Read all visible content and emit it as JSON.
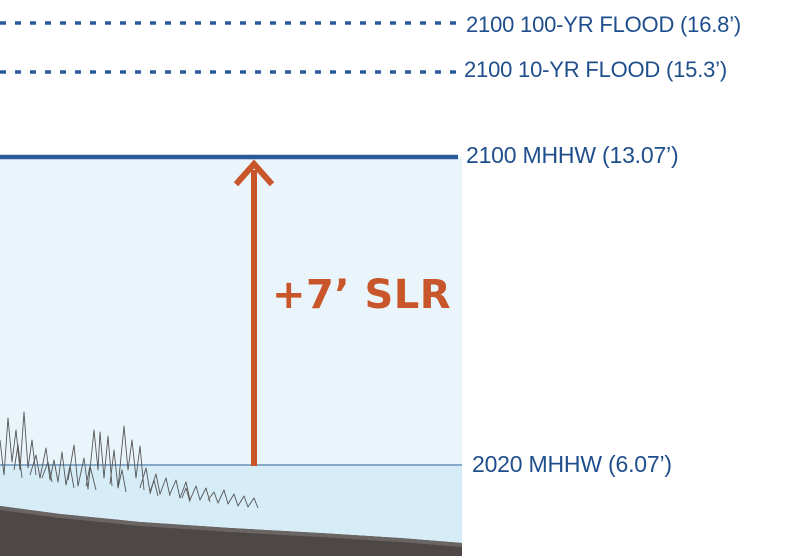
{
  "levels": {
    "flood_100yr": {
      "label": "2100 100-YR FLOOD (16.8’)",
      "value_ft": 16.8
    },
    "flood_10yr": {
      "label": "2100 10-YR FLOOD (15.3’)",
      "value_ft": 15.3
    },
    "mhhw_2100": {
      "label": "2100 MHHW (13.07’)",
      "value_ft": 13.07
    },
    "mhhw_2020": {
      "label": "2020 MHHW (6.07’)",
      "value_ft": 6.07
    }
  },
  "slr": {
    "label": "+7’ SLR"
  },
  "colors": {
    "label_blue": "#1f4e8c",
    "line_blue": "#2a5a9a",
    "future_water": "#eaf5fb",
    "current_water": "#d6ecf7",
    "current_water_line": "#86a9c9",
    "arrow_orange": "#c8562a",
    "ground": "#4d4846",
    "grass": "#555555"
  },
  "icons": {
    "arrow": "up-arrow-icon",
    "marsh": "marsh-grass-icon"
  }
}
